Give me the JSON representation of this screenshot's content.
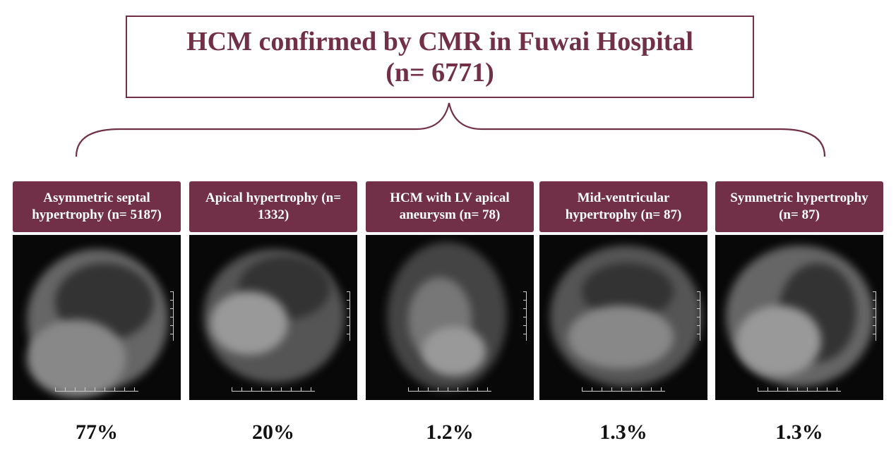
{
  "title": {
    "line1": "HCM confirmed by CMR in Fuwai Hospital",
    "line2": "(n= 6771)"
  },
  "colors": {
    "accent": "#722f48"
  },
  "categories": [
    {
      "label": "Asymmetric septal hypertrophy (n= 5187)",
      "percent": "77%"
    },
    {
      "label": "Apical hypertrophy (n= 1332)",
      "percent": "20%"
    },
    {
      "label": "HCM with LV apical aneurysm (n= 78)",
      "percent": "1.2%"
    },
    {
      "label": "Mid-ventricular hypertrophy (n= 87)",
      "percent": "1.3%"
    },
    {
      "label": "Symmetric hypertrophy (n= 87)",
      "percent": "1.3%"
    }
  ]
}
